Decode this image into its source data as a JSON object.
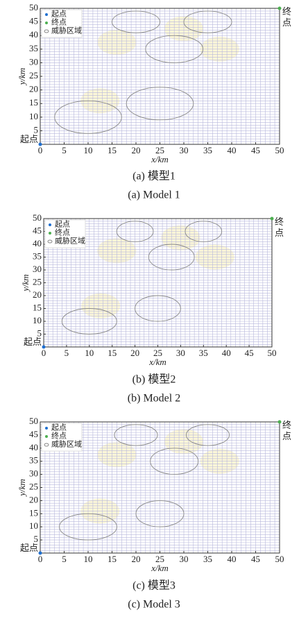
{
  "chart_data": [
    {
      "type": "scatter",
      "caption_cn": "(a) 模型1",
      "caption_en": "(a) Model 1",
      "x_label": "x/km",
      "y_label": "y/km",
      "xlim": [
        0,
        50
      ],
      "ylim": [
        0,
        50
      ],
      "xticks": [
        0,
        5,
        10,
        15,
        20,
        25,
        30,
        35,
        40,
        45,
        50
      ],
      "yticks": [
        5,
        10,
        15,
        20,
        25,
        30,
        35,
        40,
        45,
        50
      ],
      "minor_grid": true,
      "series": [
        {
          "name": "起点",
          "color": "#1f6fd0",
          "x": [
            0
          ],
          "y": [
            0
          ]
        },
        {
          "name": "终点",
          "color": "#4caf50",
          "x": [
            50
          ],
          "y": [
            50
          ]
        },
        {
          "name": "威胁区域",
          "color": "#888888",
          "x": [
            20,
            35,
            28,
            25,
            10
          ],
          "y": [
            45,
            45,
            35,
            15,
            10
          ],
          "rx": [
            5,
            5,
            6,
            7,
            7
          ],
          "ry": [
            4,
            4,
            5,
            6,
            6
          ]
        }
      ],
      "annotations": [
        {
          "text": "起点",
          "x": 0,
          "y": 0
        },
        {
          "text": "终点",
          "x": 50,
          "y": 50
        }
      ]
    },
    {
      "type": "scatter",
      "caption_cn": "(b) 模型2",
      "caption_en": "(b) Model 2",
      "x_label": "x/km",
      "y_label": "y/km",
      "xlim": [
        0,
        50
      ],
      "ylim": [
        0,
        50
      ],
      "xticks": [
        0,
        5,
        10,
        15,
        20,
        25,
        30,
        35,
        40,
        45,
        50
      ],
      "yticks": [
        5,
        10,
        15,
        20,
        25,
        30,
        35,
        40,
        45,
        50
      ],
      "minor_grid": true,
      "series": [
        {
          "name": "起点",
          "color": "#1f6fd0",
          "x": [
            0
          ],
          "y": [
            0
          ]
        },
        {
          "name": "终点",
          "color": "#4caf50",
          "x": [
            50
          ],
          "y": [
            50
          ]
        },
        {
          "name": "威胁区域",
          "color": "#888888",
          "x": [
            20,
            35,
            28,
            25,
            10
          ],
          "y": [
            45,
            45,
            35,
            15,
            10
          ],
          "rx": [
            4,
            4,
            5,
            5,
            6
          ],
          "ry": [
            4,
            4,
            5,
            5,
            5
          ]
        }
      ],
      "annotations": [
        {
          "text": "起点",
          "x": 0,
          "y": 0
        },
        {
          "text": "终点",
          "x": 50,
          "y": 50
        }
      ]
    },
    {
      "type": "scatter",
      "caption_cn": "(c) 模型3",
      "caption_en": "(c) Model 3",
      "x_label": "x/km",
      "y_label": "y/km",
      "xlim": [
        0,
        50
      ],
      "ylim": [
        0,
        50
      ],
      "xticks": [
        0,
        5,
        10,
        15,
        20,
        25,
        30,
        35,
        40,
        45,
        50
      ],
      "yticks": [
        5,
        10,
        15,
        20,
        25,
        30,
        35,
        40,
        45,
        50
      ],
      "minor_grid": true,
      "series": [
        {
          "name": "起点",
          "color": "#1f6fd0",
          "x": [
            0
          ],
          "y": [
            0
          ]
        },
        {
          "name": "终点",
          "color": "#4caf50",
          "x": [
            50
          ],
          "y": [
            50
          ]
        },
        {
          "name": "威胁区域",
          "color": "#888888",
          "x": [
            20,
            35,
            28,
            25,
            10
          ],
          "y": [
            45,
            45,
            35,
            15,
            10
          ],
          "rx": [
            4.5,
            4.5,
            5,
            5,
            6
          ],
          "ry": [
            4,
            4,
            5,
            5,
            5
          ]
        }
      ],
      "annotations": [
        {
          "text": "起点",
          "x": 0,
          "y": 0
        },
        {
          "text": "终点",
          "x": 50,
          "y": 50
        }
      ]
    }
  ]
}
